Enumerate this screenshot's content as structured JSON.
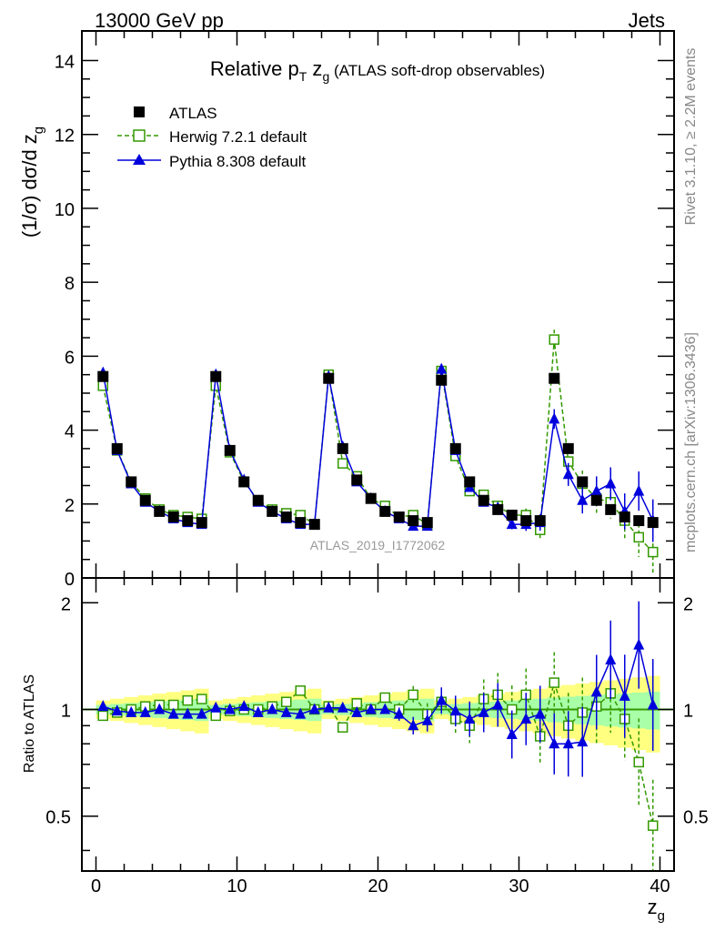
{
  "header": {
    "left": "13000 GeV pp",
    "right": "Jets"
  },
  "side_labels": {
    "rivet": "Rivet 3.1.10, ≥ 2.2M events",
    "mcplots": "mcplots.cern.ch [arXiv:1306.3436]"
  },
  "watermark": "ATLAS_2019_I1772062",
  "colors": {
    "atlas": "#000000",
    "herwig": "#339900",
    "pythia": "#0000dd",
    "band_inner": "#a8ffa8",
    "band_outer": "#ffff80"
  },
  "chart_data": [
    {
      "type": "scatter",
      "title_parts": {
        "pre": "Relative p",
        "sub1": "T",
        "mid": " z",
        "sub2": "g",
        "post": " (ATLAS soft-drop observables)"
      },
      "ylabel": "(1/σ) dσ/d z",
      "ylabel_sub": "g",
      "ylim": [
        0,
        14.8
      ],
      "yticks": [
        0,
        2,
        4,
        6,
        8,
        10,
        12,
        14
      ],
      "xlim": [
        -1,
        41
      ],
      "x": [
        0.5,
        1.5,
        2.5,
        3.5,
        4.5,
        5.5,
        6.5,
        7.5,
        8.5,
        9.5,
        10.5,
        11.5,
        12.5,
        13.5,
        14.5,
        15.5,
        16.5,
        17.5,
        18.5,
        19.5,
        20.5,
        21.5,
        22.5,
        23.5,
        24.5,
        25.5,
        26.5,
        27.5,
        28.5,
        29.5,
        30.5,
        31.5,
        32.5,
        33.5,
        34.5,
        35.5,
        36.5,
        37.5,
        38.5,
        39.5
      ],
      "legend": [
        "ATLAS",
        "Herwig 7.2.1 default",
        "Pythia 8.308 default"
      ],
      "series": [
        {
          "name": "ATLAS",
          "marker": "filled-square",
          "values": [
            5.45,
            3.5,
            2.6,
            2.1,
            1.8,
            1.65,
            1.55,
            1.5,
            5.45,
            3.45,
            2.6,
            2.1,
            1.8,
            1.65,
            1.5,
            1.45,
            5.4,
            3.5,
            2.65,
            2.15,
            1.8,
            1.65,
            1.55,
            1.5,
            5.35,
            3.5,
            2.6,
            2.1,
            1.85,
            1.7,
            1.55,
            1.55,
            5.4,
            3.5,
            2.6,
            2.1,
            1.85,
            1.65,
            1.55,
            1.5
          ]
        },
        {
          "name": "Herwig 7.2.1 default",
          "marker": "open-square",
          "values": [
            5.2,
            3.45,
            2.6,
            2.15,
            1.85,
            1.7,
            1.65,
            1.6,
            5.2,
            3.4,
            2.6,
            2.1,
            1.85,
            1.75,
            1.7,
            1.45,
            5.5,
            3.1,
            2.75,
            2.15,
            1.95,
            1.65,
            1.7,
            1.45,
            5.6,
            3.3,
            2.35,
            2.25,
            1.95,
            1.7,
            1.7,
            1.3,
            6.45,
            3.15,
            2.55,
            2.15,
            2.05,
            1.55,
            1.1,
            0.7
          ]
        },
        {
          "name": "Pythia 8.308 default",
          "marker": "filled-triangle",
          "values": [
            5.55,
            3.45,
            2.55,
            2.05,
            1.8,
            1.6,
            1.5,
            1.45,
            5.5,
            3.45,
            2.65,
            2.05,
            1.8,
            1.6,
            1.45,
            1.45,
            5.45,
            3.55,
            2.6,
            2.15,
            1.8,
            1.6,
            1.4,
            1.4,
            5.65,
            3.45,
            2.45,
            2.05,
            1.9,
            1.45,
            1.45,
            1.5,
            4.3,
            2.8,
            2.1,
            2.35,
            2.55,
            1.8,
            2.35,
            1.55
          ]
        }
      ]
    },
    {
      "type": "scatter",
      "ylabel": "Ratio to ATLAS",
      "xlabel": "z",
      "xlabel_sub": "g",
      "ylim": [
        0.35,
        2.35
      ],
      "yticks": [
        0.5,
        1,
        2
      ],
      "xlim": [
        -1,
        41
      ],
      "xticks": [
        0,
        10,
        20,
        30,
        40
      ],
      "series": [
        {
          "name": "Herwig 7.2.1 default",
          "values": [
            0.96,
            0.98,
            1.0,
            1.02,
            1.03,
            1.03,
            1.06,
            1.07,
            0.96,
            0.99,
            1.0,
            1.0,
            1.02,
            1.05,
            1.13,
            1.0,
            1.02,
            0.89,
            1.04,
            1.0,
            1.08,
            1.0,
            1.1,
            0.97,
            1.05,
            0.94,
            0.9,
            1.07,
            1.1,
            1.0,
            1.1,
            0.84,
            1.19,
            0.9,
            0.98,
            1.02,
            1.11,
            0.94,
            0.71,
            0.47
          ]
        },
        {
          "name": "Pythia 8.308 default",
          "values": [
            1.02,
            0.99,
            0.98,
            0.98,
            1.0,
            0.97,
            0.97,
            0.97,
            1.01,
            1.0,
            1.02,
            0.98,
            1.0,
            0.98,
            0.97,
            1.0,
            1.01,
            1.01,
            0.98,
            1.0,
            1.0,
            0.97,
            0.9,
            0.93,
            1.06,
            0.99,
            0.94,
            0.98,
            1.03,
            0.85,
            0.94,
            0.97,
            0.8,
            0.8,
            0.81,
            1.12,
            1.38,
            1.09,
            1.52,
            1.03
          ]
        }
      ]
    }
  ]
}
